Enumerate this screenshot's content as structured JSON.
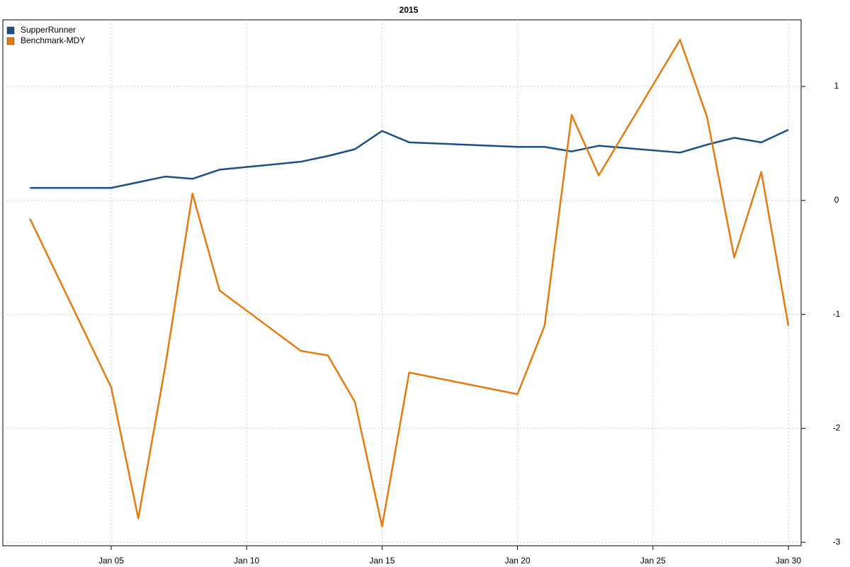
{
  "chart_data": {
    "type": "line",
    "title": "2015",
    "x": [
      2,
      5,
      6,
      7,
      8,
      9,
      12,
      13,
      14,
      15,
      16,
      20,
      21,
      22,
      23,
      26,
      27,
      28,
      29,
      30
    ],
    "xlim": [
      1.0,
      30.47
    ],
    "xticks": [
      {
        "value": 5,
        "label": "Jan 05"
      },
      {
        "value": 10,
        "label": "Jan 10"
      },
      {
        "value": 15,
        "label": "Jan 15"
      },
      {
        "value": 20,
        "label": "Jan 20"
      },
      {
        "value": 25,
        "label": "Jan 25"
      },
      {
        "value": 30,
        "label": "Jan 30"
      }
    ],
    "ylim": [
      -3.03,
      1.585
    ],
    "yticks": [
      1,
      0,
      -1,
      -2,
      -3
    ],
    "grid": true,
    "legend": "top-left",
    "series": [
      {
        "name": "SupperRunner",
        "color": "#1b4f86",
        "values": [
          0.11,
          0.11,
          0.16,
          0.21,
          0.19,
          0.27,
          0.34,
          0.39,
          0.45,
          0.61,
          0.51,
          0.47,
          0.47,
          0.43,
          0.48,
          0.42,
          0.49,
          0.55,
          0.51,
          0.62
        ]
      },
      {
        "name": "Benchmark-MDY",
        "color": "#e37b12",
        "values": [
          -0.16,
          -1.64,
          -2.79,
          -1.45,
          0.06,
          -0.79,
          -1.32,
          -1.36,
          -1.77,
          -2.86,
          -1.51,
          -1.7,
          -1.1,
          0.75,
          0.22,
          1.41,
          0.73,
          -0.5,
          0.25,
          -1.1
        ]
      }
    ]
  }
}
